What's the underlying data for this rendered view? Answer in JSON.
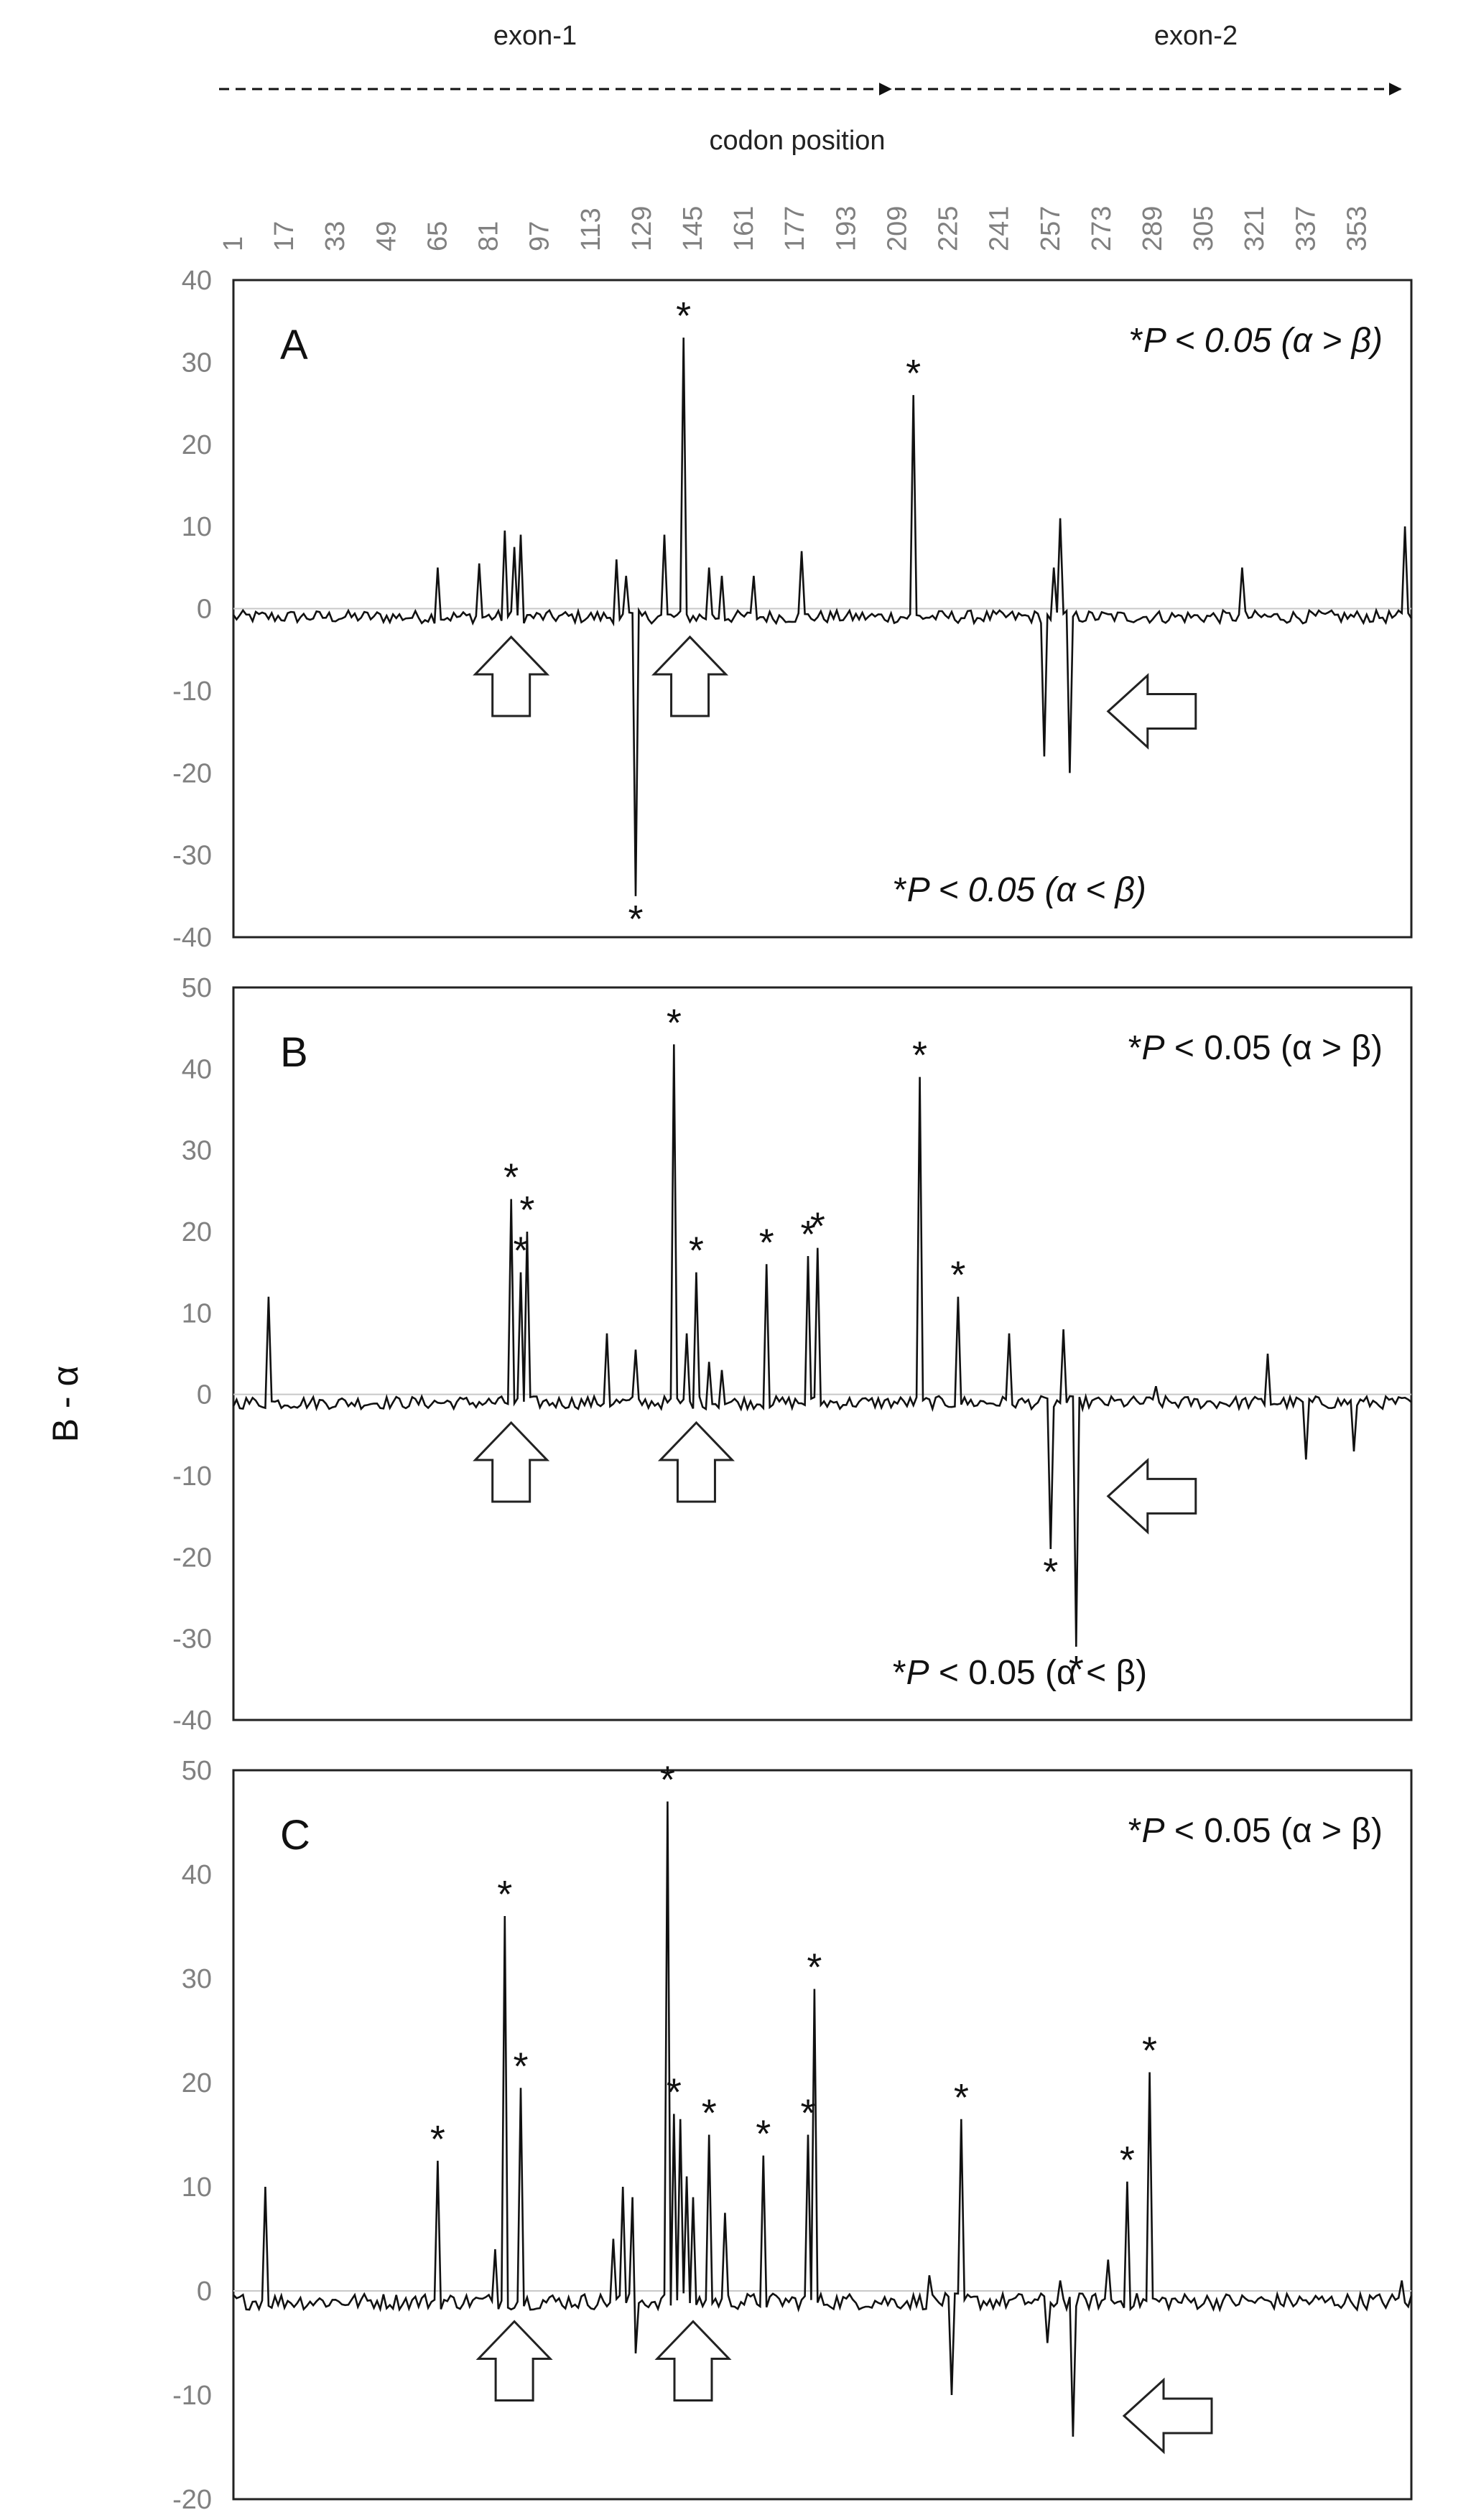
{
  "header": {
    "exon1_label": "exon-1",
    "exon2_label": "exon-2",
    "codon_axis_label": "codon position"
  },
  "y_axis_label": "B - α",
  "chart_data": [
    {
      "type": "line",
      "panel": "A",
      "x_ticks": [
        1,
        17,
        33,
        49,
        65,
        81,
        97,
        113,
        129,
        145,
        161,
        177,
        193,
        209,
        225,
        241,
        257,
        273,
        289,
        305,
        321,
        337,
        353
      ],
      "x_range": [
        1,
        370
      ],
      "ylim": [
        -40,
        40
      ],
      "y_ticks": [
        40,
        30,
        20,
        10,
        0,
        -10,
        -20,
        -30,
        -40
      ],
      "baseline": -1,
      "annotation_top": {
        "star": "*",
        "p": "P",
        "rest": " < 0.05 (α > β)",
        "italic_rest": true
      },
      "annotation_bottom": {
        "star": "*",
        "p": "P",
        "rest": " < 0.05 (α < β)",
        "italic_rest": true
      },
      "points": [
        [
          65,
          5
        ],
        [
          78,
          5.5
        ],
        [
          86,
          9.5
        ],
        [
          89,
          7.5
        ],
        [
          91,
          9
        ],
        [
          121,
          6
        ],
        [
          124,
          4
        ],
        [
          127,
          -35
        ],
        [
          136,
          9
        ],
        [
          142,
          33
        ],
        [
          150,
          5
        ],
        [
          154,
          4
        ],
        [
          164,
          4
        ],
        [
          179,
          7
        ],
        [
          214,
          26
        ],
        [
          255,
          -18
        ],
        [
          258,
          5
        ],
        [
          260,
          11
        ],
        [
          263,
          -20
        ],
        [
          317,
          5
        ],
        [
          368,
          10
        ]
      ],
      "significant": [
        142,
        214,
        127
      ],
      "arrows": [
        {
          "x": 88,
          "dir": "up"
        },
        {
          "x": 144,
          "dir": "up"
        },
        {
          "x": 275,
          "y": -12.5,
          "dir": "left"
        }
      ]
    },
    {
      "type": "line",
      "panel": "B",
      "x_ticks": [
        1,
        17,
        33,
        49,
        65,
        81,
        97,
        113,
        129,
        145,
        161,
        177,
        193,
        209,
        225,
        241,
        257,
        273,
        289,
        305,
        321,
        337,
        353
      ],
      "x_range": [
        1,
        370
      ],
      "ylim": [
        -40,
        50
      ],
      "y_ticks": [
        50,
        40,
        30,
        20,
        10,
        0,
        -10,
        -20,
        -30,
        -40
      ],
      "baseline": -1,
      "annotation_top": {
        "star": "*",
        "p": "P",
        "rest": " < 0.05 (α > β)",
        "italic_rest": false
      },
      "annotation_bottom": {
        "star": "*",
        "p": "P",
        "rest": " < 0.05 (α < β)",
        "italic_rest": false
      },
      "points": [
        [
          12,
          12
        ],
        [
          88,
          24
        ],
        [
          91,
          15
        ],
        [
          93,
          20
        ],
        [
          118,
          7.5
        ],
        [
          127,
          5.5
        ],
        [
          139,
          43
        ],
        [
          143,
          7.5
        ],
        [
          146,
          15
        ],
        [
          150,
          4
        ],
        [
          154,
          3
        ],
        [
          168,
          16
        ],
        [
          181,
          17
        ],
        [
          184,
          18
        ],
        [
          216,
          39
        ],
        [
          228,
          12
        ],
        [
          244,
          7.5
        ],
        [
          257,
          -19
        ],
        [
          261,
          8
        ],
        [
          265,
          -31
        ],
        [
          290,
          1
        ],
        [
          325,
          5
        ],
        [
          337,
          -8
        ],
        [
          352,
          -7
        ]
      ],
      "significant": [
        88,
        91,
        93,
        139,
        146,
        168,
        181,
        184,
        216,
        228,
        257,
        265
      ],
      "arrows": [
        {
          "x": 88,
          "dir": "up"
        },
        {
          "x": 146,
          "dir": "up"
        },
        {
          "x": 275,
          "y": -12.5,
          "dir": "left"
        }
      ]
    },
    {
      "type": "line",
      "panel": "C",
      "x_ticks": [
        1,
        17,
        33,
        49,
        65,
        81,
        97,
        113,
        129,
        145,
        161,
        177,
        193,
        209,
        225,
        241,
        257,
        273,
        289,
        305,
        321,
        337,
        353
      ],
      "x_range": [
        1,
        370
      ],
      "ylim": [
        -20,
        50
      ],
      "y_ticks": [
        50,
        40,
        30,
        20,
        10,
        0,
        -10,
        -20
      ],
      "baseline": -1,
      "annotation_top": {
        "star": "*",
        "p": "P",
        "rest": " < 0.05 (α > β)",
        "italic_rest": false
      },
      "points": [
        [
          11,
          10
        ],
        [
          65,
          12.5
        ],
        [
          83,
          4
        ],
        [
          86,
          36
        ],
        [
          91,
          19.5
        ],
        [
          120,
          5
        ],
        [
          123,
          10
        ],
        [
          126,
          9
        ],
        [
          127,
          -6
        ],
        [
          137,
          47
        ],
        [
          139,
          17
        ],
        [
          141,
          16.5
        ],
        [
          143,
          11
        ],
        [
          145,
          9
        ],
        [
          150,
          15
        ],
        [
          155,
          7.5
        ],
        [
          167,
          13
        ],
        [
          181,
          15
        ],
        [
          183,
          29
        ],
        [
          219,
          1.5
        ],
        [
          226,
          -10
        ],
        [
          229,
          16.5
        ],
        [
          256,
          -5
        ],
        [
          260,
          1
        ],
        [
          264,
          -14
        ],
        [
          275,
          3
        ],
        [
          281,
          10.5
        ],
        [
          288,
          21
        ],
        [
          367,
          1
        ]
      ],
      "significant": [
        65,
        86,
        91,
        137,
        139,
        150,
        167,
        181,
        183,
        229,
        281,
        288
      ],
      "arrows": [
        {
          "x": 89,
          "dir": "up"
        },
        {
          "x": 145,
          "dir": "up"
        },
        {
          "x": 280,
          "y": -12,
          "dir": "left"
        }
      ]
    }
  ]
}
